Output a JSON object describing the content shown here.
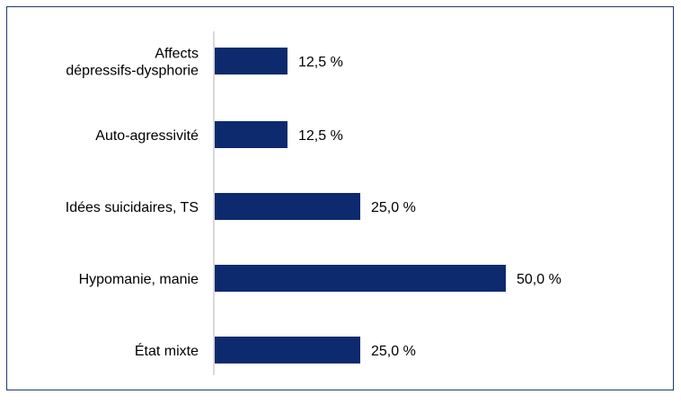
{
  "chart_data": {
    "type": "bar",
    "orientation": "horizontal",
    "categories": [
      [
        "Affects",
        "dépressifs-dysphorie"
      ],
      [
        "Auto-agressivité"
      ],
      [
        "Idées suicidaires, TS"
      ],
      [
        "Hypomanie, manie"
      ],
      [
        "État mixte"
      ]
    ],
    "values": [
      12.5,
      12.5,
      25.0,
      50.0,
      25.0
    ],
    "value_labels": [
      "12,5 %",
      "12,5 %",
      "25,0 %",
      "50,0 %",
      "25,0 %"
    ],
    "xlim": [
      0,
      50
    ],
    "title": "",
    "xlabel": "",
    "ylabel": "",
    "grid": false,
    "legend": "none",
    "colors": {
      "bar": "#0d2a6e",
      "frame": "#1f3a6b",
      "axis": "#b3b3b3",
      "text": "#000000"
    }
  }
}
